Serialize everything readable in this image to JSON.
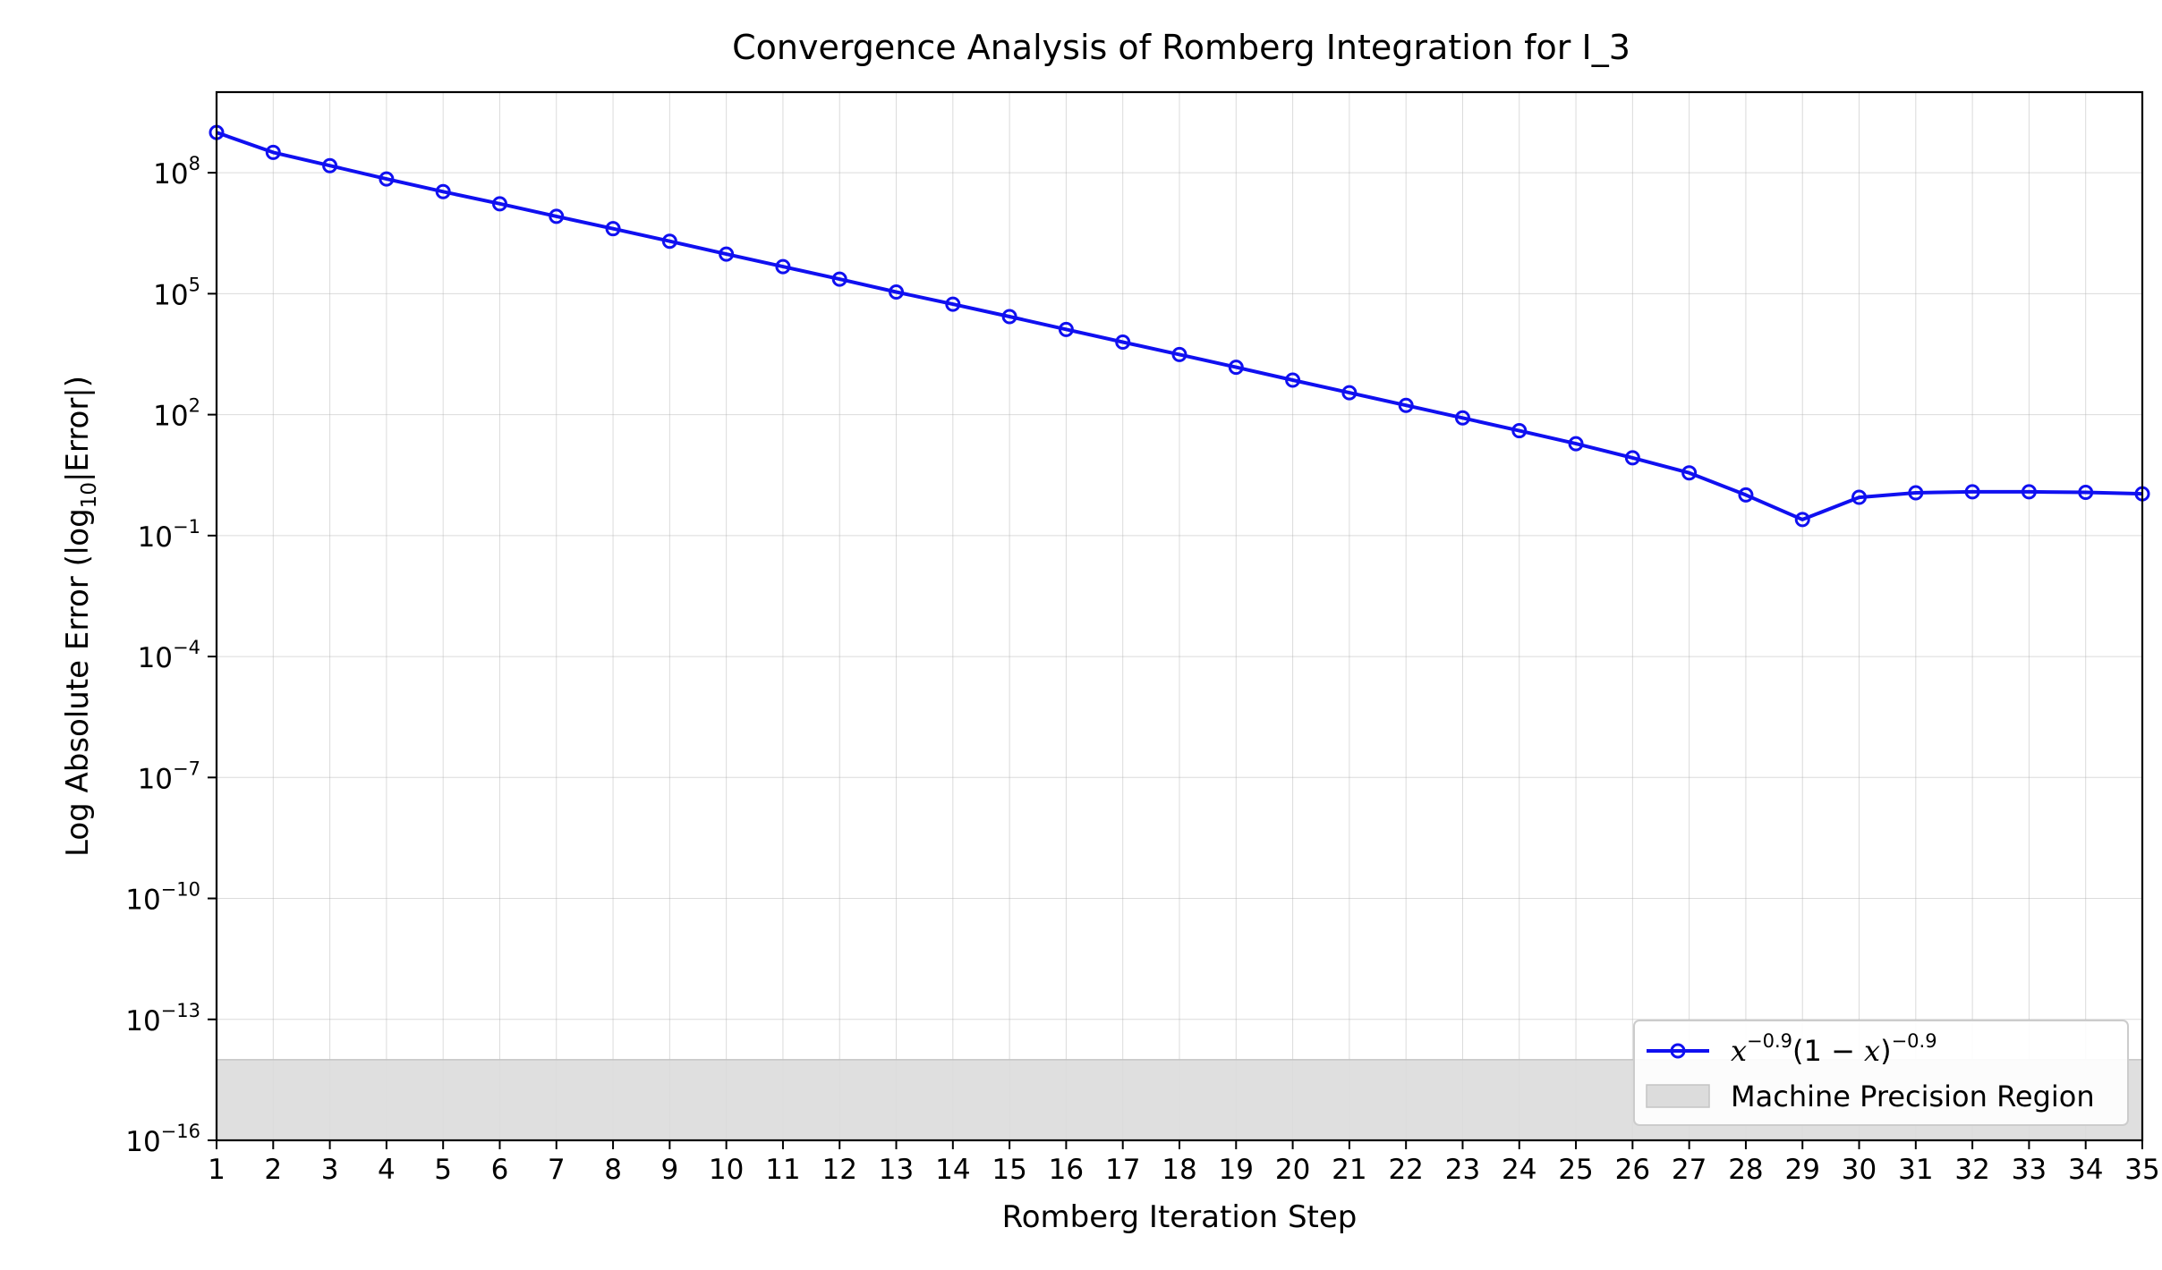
{
  "chart_data": {
    "type": "line",
    "title": "Convergence Analysis of Romberg Integration for I_3",
    "xlabel": "Romberg Iteration Step",
    "ylabel": {
      "prefix": "Log Absolute Error (log",
      "subscript": "10",
      "suffix": "|Error|)"
    },
    "y_scale": "log",
    "xlim": [
      1,
      35
    ],
    "ylim_log10": [
      -16,
      10
    ],
    "x_ticks": [
      "1",
      "2",
      "3",
      "4",
      "5",
      "6",
      "7",
      "8",
      "9",
      "10",
      "11",
      "12",
      "13",
      "14",
      "15",
      "16",
      "17",
      "18",
      "19",
      "20",
      "21",
      "22",
      "23",
      "24",
      "25",
      "26",
      "27",
      "28",
      "29",
      "30",
      "31",
      "32",
      "33",
      "34",
      "35"
    ],
    "y_ticks": [
      {
        "base": "10",
        "exp": "−16",
        "log10": -16
      },
      {
        "base": "10",
        "exp": "−13",
        "log10": -13
      },
      {
        "base": "10",
        "exp": "−10",
        "log10": -10
      },
      {
        "base": "10",
        "exp": "−7",
        "log10": -7
      },
      {
        "base": "10",
        "exp": "−4",
        "log10": -4
      },
      {
        "base": "10",
        "exp": "−1",
        "log10": -1
      },
      {
        "base": "10",
        "exp": "2",
        "log10": 2
      },
      {
        "base": "10",
        "exp": "5",
        "log10": 5
      },
      {
        "base": "10",
        "exp": "8",
        "log10": 8
      }
    ],
    "grid": true,
    "legend_position": "lower-right",
    "series": [
      {
        "name": {
          "t1": "x",
          "s1": "−0.9",
          "t2": "(1 − ",
          "t3": "x",
          "t4": ")",
          "s2": "−0.9"
        },
        "color": "#1010f0",
        "marker": "circle-open",
        "x": [
          1,
          2,
          3,
          4,
          5,
          6,
          7,
          8,
          9,
          10,
          11,
          12,
          13,
          14,
          15,
          16,
          17,
          18,
          19,
          20,
          21,
          22,
          23,
          24,
          25,
          26,
          27,
          28,
          29,
          30,
          31,
          32,
          33,
          34,
          35
        ],
        "y": [
          1000000000.0,
          320000000.0,
          150000000.0,
          70000000.0,
          34000000.0,
          17000000.0,
          8300000.0,
          4100000.0,
          2000000.0,
          960000.0,
          470000.0,
          230000.0,
          110000.0,
          55000.0,
          27000.0,
          13000.0,
          6300.0,
          3100.0,
          1500.0,
          720.0,
          350.0,
          170.0,
          83.0,
          40.0,
          19.0,
          8.5,
          3.6,
          1.02,
          0.25,
          0.89,
          1.15,
          1.22,
          1.22,
          1.18,
          1.09
        ]
      }
    ],
    "shaded_region": {
      "label": "Machine Precision Region",
      "y_from": 1e-16,
      "y_to": 1e-14,
      "color": "#dcdcdc"
    }
  }
}
